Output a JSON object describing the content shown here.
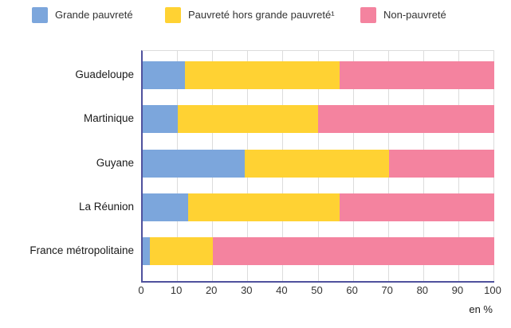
{
  "legend": {
    "items": [
      {
        "label": "Grande pauvreté",
        "color": "#7CA6DC"
      },
      {
        "label": "Pauvreté hors grande pauvreté¹",
        "color": "#FFD233"
      },
      {
        "label": "Non-pauvreté",
        "color": "#F4839F"
      }
    ]
  },
  "chart_data": {
    "type": "bar",
    "orientation": "horizontal",
    "stacked": true,
    "unit": "en %",
    "categories": [
      "Guadeloupe",
      "Martinique",
      "Guyane",
      "La Réunion",
      "France métropolitaine"
    ],
    "series": [
      {
        "name": "Grande pauvreté",
        "color": "#7CA6DC",
        "values": [
          12,
          10,
          29,
          13,
          2
        ]
      },
      {
        "name": "Pauvreté hors grande pauvreté¹",
        "color": "#FFD233",
        "values": [
          44,
          40,
          41,
          43,
          18
        ]
      },
      {
        "name": "Non-pauvreté",
        "color": "#F4839F",
        "values": [
          44,
          50,
          30,
          44,
          80
        ]
      }
    ],
    "xlim": [
      0,
      100
    ],
    "x_ticks": [
      0,
      10,
      20,
      30,
      40,
      50,
      60,
      70,
      80,
      90,
      100
    ],
    "grid": true,
    "legend_position": "top"
  },
  "colors": {
    "axis": "#4F519D",
    "gridline": "#DCDCDC",
    "text": "#1A1A1A",
    "background": "#FFFFFF"
  }
}
